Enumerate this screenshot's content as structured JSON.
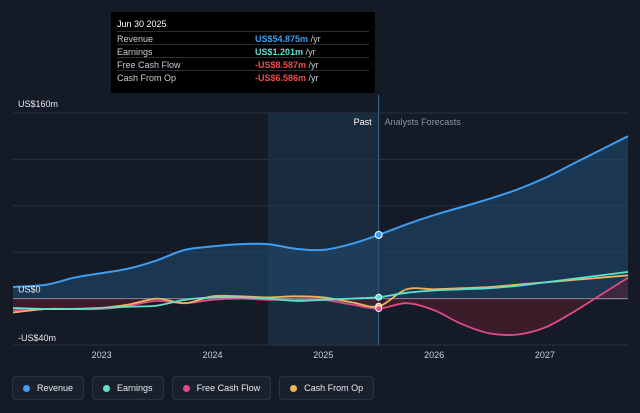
{
  "tooltip": {
    "date": "Jun 30 2025",
    "rows": [
      {
        "label": "Revenue",
        "value": "US$54.875m",
        "unit": "/yr",
        "color": "#3d9df0"
      },
      {
        "label": "Earnings",
        "value": "US$1.201m",
        "unit": "/yr",
        "color": "#5fe0cf"
      },
      {
        "label": "Free Cash Flow",
        "value": "-US$8.587m",
        "unit": "/yr",
        "color": "#f04a4a"
      },
      {
        "label": "Cash From Op",
        "value": "-US$6.586m",
        "unit": "/yr",
        "color": "#f04a4a"
      }
    ]
  },
  "legend": [
    {
      "label": "Revenue",
      "color": "#3d9df0"
    },
    {
      "label": "Earnings",
      "color": "#5fe0cf"
    },
    {
      "label": "Free Cash Flow",
      "color": "#e0498a"
    },
    {
      "label": "Cash From Op",
      "color": "#f0b45a"
    }
  ],
  "chart_data": {
    "type": "line",
    "title": "",
    "xlabel": "",
    "ylabel": "",
    "ylim": [
      -40,
      160
    ],
    "xlim": [
      2022.2,
      2027.75
    ],
    "y_tick_labels": [
      {
        "value": 160,
        "label": "US$160m"
      },
      {
        "value": 0,
        "label": "US$0"
      },
      {
        "value": -40,
        "label": "-US$40m"
      }
    ],
    "x_tick_labels": [
      {
        "value": 2023,
        "label": "2023"
      },
      {
        "value": 2024,
        "label": "2024"
      },
      {
        "value": 2025,
        "label": "2025"
      },
      {
        "value": 2026,
        "label": "2026"
      },
      {
        "value": 2027,
        "label": "2027"
      }
    ],
    "past_label": "Past",
    "forecast_label": "Analysts Forecasts",
    "past_end": 2025.5,
    "highlight_start": 2024.5,
    "series": [
      {
        "name": "Revenue",
        "color": "#3d9df0",
        "points": [
          [
            2022.2,
            10
          ],
          [
            2022.5,
            12
          ],
          [
            2022.75,
            18
          ],
          [
            2023.0,
            22
          ],
          [
            2023.25,
            26
          ],
          [
            2023.5,
            33
          ],
          [
            2023.75,
            42
          ],
          [
            2024.0,
            45
          ],
          [
            2024.25,
            47
          ],
          [
            2024.5,
            47
          ],
          [
            2024.75,
            43
          ],
          [
            2025.0,
            42
          ],
          [
            2025.25,
            47
          ],
          [
            2025.5,
            54.9
          ]
        ],
        "forecast": [
          [
            2025.5,
            54.9
          ],
          [
            2025.75,
            64
          ],
          [
            2026.0,
            72
          ],
          [
            2026.25,
            79
          ],
          [
            2026.5,
            86
          ],
          [
            2026.75,
            94
          ],
          [
            2027.0,
            104
          ],
          [
            2027.25,
            116
          ],
          [
            2027.5,
            128
          ],
          [
            2027.75,
            140
          ]
        ]
      },
      {
        "name": "Earnings",
        "color": "#5fe0cf",
        "points": [
          [
            2022.2,
            -8
          ],
          [
            2022.5,
            -9
          ],
          [
            2022.75,
            -9
          ],
          [
            2023.0,
            -8
          ],
          [
            2023.25,
            -7
          ],
          [
            2023.5,
            -6
          ],
          [
            2023.75,
            -1
          ],
          [
            2024.0,
            1
          ],
          [
            2024.25,
            1
          ],
          [
            2024.5,
            0
          ],
          [
            2024.75,
            -2
          ],
          [
            2025.0,
            -1
          ],
          [
            2025.25,
            0
          ],
          [
            2025.5,
            1.2
          ]
        ],
        "forecast": [
          [
            2025.5,
            1.2
          ],
          [
            2025.75,
            5
          ],
          [
            2026.0,
            7
          ],
          [
            2026.25,
            8
          ],
          [
            2026.5,
            9
          ],
          [
            2026.75,
            11
          ],
          [
            2027.0,
            14
          ],
          [
            2027.25,
            17
          ],
          [
            2027.5,
            20
          ],
          [
            2027.75,
            23
          ]
        ]
      },
      {
        "name": "Free Cash Flow",
        "color": "#e0498a",
        "points": [
          [
            2022.2,
            -10
          ],
          [
            2022.5,
            -9
          ],
          [
            2022.75,
            -9
          ],
          [
            2023.0,
            -9
          ],
          [
            2023.25,
            -6
          ],
          [
            2023.5,
            -2
          ],
          [
            2023.75,
            -4
          ],
          [
            2024.0,
            -1
          ],
          [
            2024.25,
            0
          ],
          [
            2024.5,
            -1
          ],
          [
            2024.75,
            -1
          ],
          [
            2025.0,
            -1
          ],
          [
            2025.25,
            -5
          ],
          [
            2025.5,
            -8.6
          ]
        ],
        "forecast": [
          [
            2025.5,
            -8.6
          ],
          [
            2025.75,
            -4
          ],
          [
            2026.0,
            -10
          ],
          [
            2026.25,
            -22
          ],
          [
            2026.5,
            -30
          ],
          [
            2026.75,
            -31
          ],
          [
            2027.0,
            -25
          ],
          [
            2027.25,
            -12
          ],
          [
            2027.5,
            3
          ],
          [
            2027.75,
            18
          ]
        ]
      },
      {
        "name": "Cash From Op",
        "color": "#f0b45a",
        "points": [
          [
            2022.2,
            -12
          ],
          [
            2022.5,
            -9
          ],
          [
            2022.75,
            -9
          ],
          [
            2023.0,
            -8
          ],
          [
            2023.25,
            -5
          ],
          [
            2023.5,
            0
          ],
          [
            2023.75,
            -4
          ],
          [
            2024.0,
            2
          ],
          [
            2024.25,
            2
          ],
          [
            2024.5,
            1
          ],
          [
            2024.75,
            2
          ],
          [
            2025.0,
            1
          ],
          [
            2025.25,
            -3
          ],
          [
            2025.5,
            -6.6
          ]
        ],
        "forecast": [
          [
            2025.5,
            -6.6
          ],
          [
            2025.75,
            8
          ],
          [
            2026.0,
            8
          ],
          [
            2026.25,
            9
          ],
          [
            2026.5,
            10
          ],
          [
            2026.75,
            12
          ],
          [
            2027.0,
            14
          ],
          [
            2027.25,
            16
          ],
          [
            2027.5,
            18
          ],
          [
            2027.75,
            20
          ]
        ]
      }
    ]
  }
}
